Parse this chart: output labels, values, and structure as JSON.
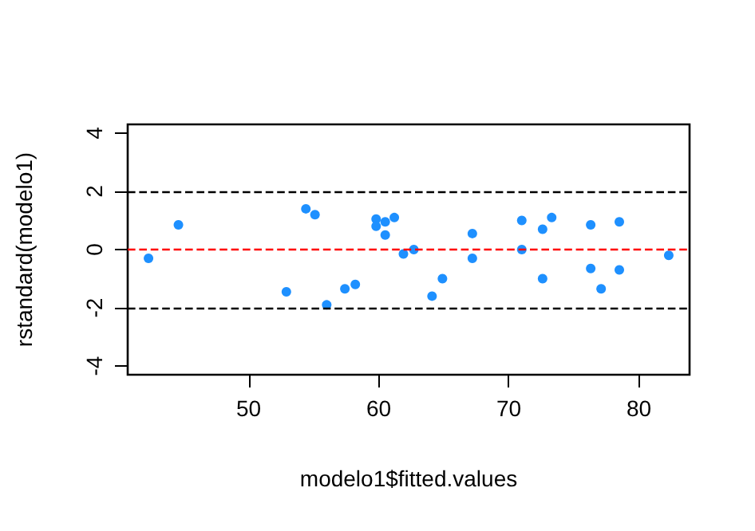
{
  "chart_data": {
    "type": "scatter",
    "xlabel": "modelo1$fitted.values",
    "ylabel": "rstandard(modelo1)",
    "x": [
      42.3,
      44.6,
      52.9,
      54.4,
      55.1,
      56.0,
      57.4,
      58.2,
      59.8,
      59.8,
      60.5,
      60.5,
      61.2,
      61.9,
      62.7,
      64.1,
      64.9,
      67.2,
      67.2,
      71.0,
      71.0,
      72.6,
      72.6,
      73.3,
      76.3,
      76.3,
      77.1,
      78.5,
      78.5,
      82.3
    ],
    "series": [
      {
        "color": "#1e90ff",
        "values": [
          -0.3,
          0.85,
          -1.45,
          1.4,
          1.2,
          -1.9,
          -1.35,
          -1.2,
          1.05,
          0.8,
          0.95,
          0.5,
          1.1,
          -0.15,
          0.0,
          -1.6,
          -1.0,
          0.55,
          -0.3,
          1.0,
          0.0,
          0.7,
          -1.0,
          1.1,
          0.85,
          -0.65,
          -1.35,
          0.95,
          -0.7,
          -0.2
        ]
      }
    ],
    "xlim": [
      40.7,
      83.9
    ],
    "ylim": [
      -4.3,
      4.3
    ],
    "xticks": [
      50,
      60,
      70,
      80
    ],
    "yticks": [
      -4,
      -2,
      0,
      2,
      4
    ],
    "ref_lines": [
      {
        "axis": "y",
        "value": 2,
        "color": "#000000",
        "line_style": "dashed"
      },
      {
        "axis": "y",
        "value": 0,
        "color": "#ff0000",
        "line_style": "dashed"
      },
      {
        "axis": "y",
        "value": -2,
        "color": "#000000",
        "line_style": "dashed"
      }
    ],
    "grid": false,
    "marker": "circle"
  }
}
